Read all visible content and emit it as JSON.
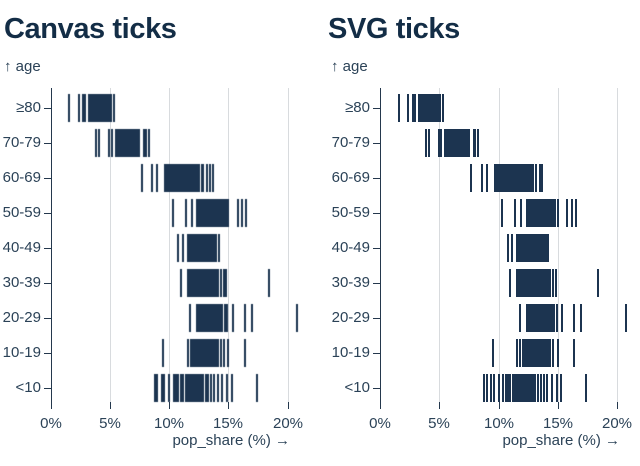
{
  "panels": [
    {
      "title": "Canvas ticks",
      "renderer": "canvas"
    },
    {
      "title": "SVG ticks",
      "renderer": "svg"
    }
  ],
  "colors": {
    "tick": "#1c3450",
    "title": "#132d46",
    "label": "#2b4257",
    "grid": "#d8dbde",
    "axis": "#24384d",
    "background": "#ffffff"
  },
  "chart_data": {
    "type": "tick",
    "ylabel": "↑ age",
    "xlabel": "pop_share (%) →",
    "categories": [
      "≥80",
      "70-79",
      "60-69",
      "50-59",
      "40-49",
      "30-39",
      "20-29",
      "10-19",
      "<10"
    ],
    "x_tick_labels": [
      "0%",
      "5%",
      "10%",
      "15%",
      "20%"
    ],
    "x_tick_values": [
      0,
      5,
      10,
      15,
      20
    ],
    "xlim": [
      0,
      20.9
    ],
    "grid": true,
    "legend": false,
    "series": [
      {
        "name": "≥80",
        "values": [
          1.6,
          2.4,
          2.75,
          2.95,
          3.25,
          3.4,
          3.5,
          3.6,
          3.7,
          3.8,
          3.9,
          4.0,
          4.1,
          4.2,
          4.35,
          4.45,
          4.55,
          4.65,
          4.75,
          4.9,
          5.0,
          5.1,
          5.35
        ]
      },
      {
        "name": "70-79",
        "values": [
          3.85,
          4.1,
          4.95,
          5.15,
          5.5,
          5.65,
          5.8,
          5.9,
          6.0,
          6.1,
          6.2,
          6.3,
          6.4,
          6.5,
          6.6,
          6.7,
          6.85,
          6.95,
          7.05,
          7.15,
          7.3,
          7.5,
          7.9,
          8.05,
          8.3
        ]
      },
      {
        "name": "60-69",
        "values": [
          7.7,
          8.6,
          9.0,
          9.7,
          9.85,
          10.0,
          10.15,
          10.3,
          10.45,
          10.6,
          10.75,
          10.9,
          11.05,
          11.2,
          11.35,
          11.5,
          11.65,
          11.8,
          11.95,
          12.1,
          12.25,
          12.4,
          12.55,
          12.75,
          12.9,
          13.2,
          13.5,
          13.7
        ]
      },
      {
        "name": "50-59",
        "values": [
          10.3,
          11.4,
          11.9,
          12.4,
          12.55,
          12.7,
          12.85,
          13.0,
          13.15,
          13.3,
          13.45,
          13.6,
          13.75,
          13.9,
          14.05,
          14.2,
          14.35,
          14.5,
          14.65,
          14.8,
          15.0,
          15.8,
          16.2,
          16.5
        ]
      },
      {
        "name": "40-49",
        "values": [
          10.8,
          11.15,
          11.6,
          11.75,
          11.9,
          12.05,
          12.2,
          12.35,
          12.5,
          12.65,
          12.8,
          12.95,
          13.1,
          13.25,
          13.4,
          13.55,
          13.7,
          13.85,
          14.0,
          14.2
        ]
      },
      {
        "name": "30-39",
        "values": [
          11.0,
          11.6,
          11.75,
          11.9,
          12.05,
          12.2,
          12.35,
          12.5,
          12.65,
          12.8,
          12.95,
          13.1,
          13.25,
          13.4,
          13.55,
          13.7,
          13.85,
          14.0,
          14.15,
          14.35,
          14.6,
          14.85,
          18.4
        ]
      },
      {
        "name": "20-29",
        "values": [
          11.8,
          12.4,
          12.55,
          12.7,
          12.85,
          13.0,
          13.15,
          13.3,
          13.45,
          13.6,
          13.75,
          13.9,
          14.05,
          14.2,
          14.35,
          14.5,
          14.7,
          14.9,
          15.4,
          16.4,
          17.0,
          20.8
        ]
      },
      {
        "name": "10-19",
        "values": [
          9.5,
          11.6,
          11.85,
          12.05,
          12.2,
          12.35,
          12.5,
          12.65,
          12.8,
          12.95,
          13.1,
          13.25,
          13.4,
          13.55,
          13.7,
          13.85,
          14.0,
          14.15,
          14.35,
          14.6,
          15.0,
          16.4
        ]
      },
      {
        "name": "<10",
        "values": [
          8.8,
          9.0,
          9.4,
          9.6,
          10.0,
          10.4,
          10.6,
          10.8,
          11.0,
          11.2,
          11.4,
          11.55,
          11.7,
          11.85,
          12.0,
          12.15,
          12.3,
          12.45,
          12.6,
          12.75,
          12.9,
          13.1,
          13.3,
          13.55,
          13.8,
          14.1,
          14.5,
          14.9,
          15.3,
          17.4
        ]
      }
    ]
  }
}
